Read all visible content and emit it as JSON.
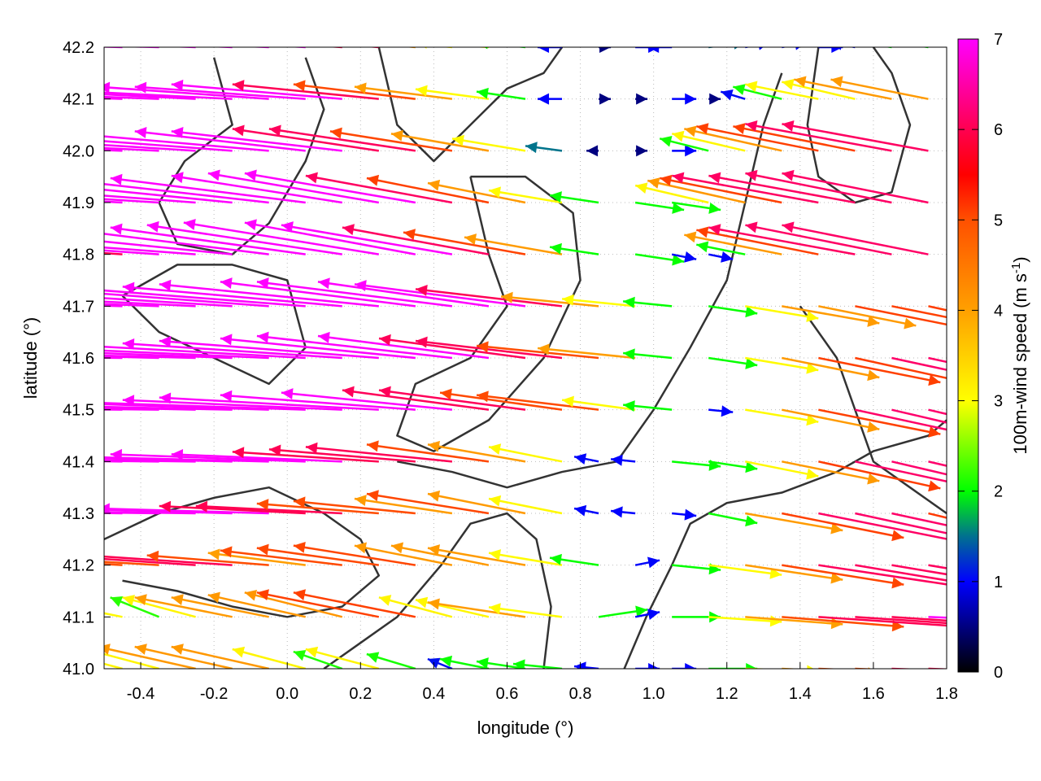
{
  "chart_data": {
    "type": "vector-field",
    "xlabel": "longitude (°)",
    "ylabel": "latitude (°)",
    "xlim": [
      -0.5,
      1.8
    ],
    "ylim": [
      41.0,
      42.2
    ],
    "xticks": [
      "-0.4",
      "-0.2",
      "0.0",
      "0.2",
      "0.4",
      "0.6",
      "0.8",
      "1.0",
      "1.2",
      "1.4",
      "1.6",
      "1.8"
    ],
    "yticks": [
      "41.0",
      "41.1",
      "41.2",
      "41.3",
      "41.4",
      "41.5",
      "41.6",
      "41.7",
      "41.8",
      "41.9",
      "42.0",
      "42.1",
      "42.2"
    ],
    "grid": true,
    "colorbar": {
      "label": "100m-wind speed (m s",
      "label_sup": "-1",
      "label_end": ")",
      "range": [
        0,
        7
      ],
      "ticks": [
        "0",
        "1",
        "2",
        "3",
        "4",
        "5",
        "6",
        "7"
      ],
      "palette": [
        {
          "v": 0,
          "c": "#000000"
        },
        {
          "v": 1,
          "c": "#0000ff"
        },
        {
          "v": 1.5,
          "c": "#007090"
        },
        {
          "v": 2,
          "c": "#00ff00"
        },
        {
          "v": 3,
          "c": "#ffff00"
        },
        {
          "v": 4,
          "c": "#ffa000"
        },
        {
          "v": 5,
          "c": "#ff5000"
        },
        {
          "v": 5.5,
          "c": "#ff0000"
        },
        {
          "v": 6,
          "c": "#ff0050"
        },
        {
          "v": 7,
          "c": "#ff00ff"
        }
      ]
    },
    "contour_color": "#333333",
    "grid_lon": [
      -0.45,
      -0.35,
      -0.25,
      -0.15,
      -0.05,
      0.05,
      0.15,
      0.25,
      0.35,
      0.45,
      0.55,
      0.65,
      0.75,
      0.85,
      0.95,
      1.05,
      1.15,
      1.25,
      1.35,
      1.45,
      1.55,
      1.65,
      1.75
    ],
    "grid_lat": [
      42.2,
      42.1,
      42.0,
      41.9,
      41.8,
      41.7,
      41.6,
      41.5,
      41.4,
      41.3,
      41.2,
      41.1,
      41.0
    ],
    "u": [
      [
        -8,
        -8,
        -8,
        -7,
        -7,
        -7,
        -6,
        -6,
        -4,
        -3,
        -3,
        -2,
        -1,
        0.5,
        1,
        -1,
        1.5,
        1,
        1,
        1,
        -1,
        -2,
        -2
      ],
      [
        -8,
        -8,
        -8,
        -8,
        -7,
        -7,
        -7,
        -6,
        -5,
        -4,
        -3,
        -2,
        -1,
        0.5,
        0.5,
        1,
        0.5,
        -1,
        -2,
        -3,
        -3,
        -4,
        -4
      ],
      [
        -8,
        -8,
        -8,
        -8,
        -8,
        -7,
        -7,
        -6,
        -6,
        -5,
        -4,
        -3,
        -1.5,
        -0.5,
        0.5,
        1,
        -2,
        -3,
        -4,
        -5,
        -5,
        -6,
        -6
      ],
      [
        -7,
        -8,
        -8,
        -8,
        -8,
        -8,
        -7,
        -7,
        -7,
        -6,
        -5,
        -4,
        -3,
        -2,
        2,
        2,
        -3,
        -4,
        -5,
        -6,
        -6,
        -6,
        -6
      ],
      [
        -6,
        -7,
        -8,
        -8,
        -8,
        -8,
        -8,
        -8,
        -7,
        -7,
        -6,
        -5,
        -4,
        -2,
        2,
        1,
        1,
        -2,
        -4,
        -5,
        -6,
        -6,
        -6
      ],
      [
        -8,
        -8,
        -8,
        -8,
        -8,
        -9,
        -9,
        -9,
        -8,
        -8,
        -7,
        -7,
        -6,
        -4,
        -3,
        -2,
        2,
        3,
        4,
        4,
        5,
        5,
        5
      ],
      [
        -8,
        -8,
        -8,
        -8,
        -9,
        -9,
        -9,
        -9,
        -8,
        -8,
        -7,
        -6,
        -6,
        -5,
        -4,
        -2,
        2,
        3,
        4,
        5,
        5,
        6,
        6
      ],
      [
        -8,
        -8,
        -9,
        -9,
        -9,
        -9,
        -9,
        -9,
        -8,
        -7,
        -6,
        -6,
        -5,
        -5,
        -3,
        -2,
        1,
        3,
        4,
        5,
        6,
        6,
        6
      ],
      [
        -8,
        -8,
        -8,
        -8,
        -8,
        -8,
        -7,
        -6,
        -6,
        -6,
        -5,
        -4,
        -3,
        -1,
        -1,
        2,
        2,
        3,
        4,
        5,
        6,
        6,
        6
      ],
      [
        -7,
        -7,
        -7,
        -7,
        -7,
        -6,
        -6,
        -5,
        -5,
        -4,
        -5,
        -4,
        -3,
        -1,
        -1,
        1,
        2,
        4,
        5,
        6,
        6,
        6,
        5
      ],
      [
        -5,
        -5,
        -6,
        -6,
        -5,
        -4,
        -5,
        -5,
        -5,
        -4,
        -4,
        -4,
        -3,
        -2,
        1,
        2,
        3,
        4,
        5,
        6,
        6,
        6,
        6
      ],
      [
        -3,
        -2,
        -3,
        -4,
        -4,
        -4,
        -4,
        -5,
        -5,
        -3,
        -3,
        -4,
        -3,
        2,
        1,
        2,
        3,
        4,
        5,
        6,
        6,
        6,
        7
      ],
      [
        -3,
        -3,
        -4,
        -4,
        -4,
        -3,
        -2,
        -3,
        -2,
        -1,
        -2,
        -2,
        -2,
        -1,
        1,
        1,
        2,
        3,
        4,
        5,
        5,
        6,
        6
      ]
    ],
    "v": [
      [
        0.2,
        0.2,
        0.3,
        0.3,
        0.3,
        0.4,
        0.4,
        0.5,
        0.4,
        0.3,
        0.2,
        0.2,
        0,
        0,
        0,
        0,
        0.2,
        0.2,
        0.2,
        0,
        0.2,
        0.3,
        0.3
      ],
      [
        0.3,
        0.3,
        0.4,
        0.4,
        0.5,
        0.5,
        0.6,
        0.6,
        0.6,
        0.5,
        0.4,
        0.3,
        0,
        0,
        0,
        0,
        0,
        0.3,
        0.5,
        0.6,
        0.7,
        0.8,
        0.8
      ],
      [
        0.3,
        0.4,
        0.5,
        0.6,
        0.7,
        0.8,
        0.8,
        0.9,
        0.9,
        0.8,
        0.7,
        0.5,
        0.2,
        0,
        0,
        0,
        0.5,
        0.7,
        0.9,
        1.0,
        1.0,
        1.1,
        1.1
      ],
      [
        0.4,
        0.5,
        0.6,
        0.8,
        0.9,
        1.0,
        1.1,
        1.2,
        1.2,
        1.1,
        1.0,
        0.8,
        0.5,
        0.3,
        -0.3,
        -0.3,
        0.7,
        0.9,
        1.0,
        1.1,
        1.1,
        1.2,
        1.2
      ],
      [
        0.4,
        0.5,
        0.6,
        0.8,
        1.0,
        1.1,
        1.2,
        1.3,
        1.3,
        1.2,
        1.1,
        0.9,
        0.7,
        0.3,
        -0.3,
        -0.2,
        -0.2,
        0.4,
        0.8,
        1.0,
        1.1,
        1.2,
        1.2
      ],
      [
        0.2,
        0.3,
        0.4,
        0.5,
        0.6,
        0.7,
        0.8,
        0.9,
        1.0,
        1.0,
        1.0,
        0.9,
        0.7,
        0.4,
        0.3,
        0.2,
        -0.3,
        -0.5,
        -0.7,
        -0.8,
        -1.0,
        -1.0,
        -1.1
      ],
      [
        0.1,
        0.2,
        0.2,
        0.3,
        0.4,
        0.5,
        0.6,
        0.7,
        0.8,
        0.9,
        0.9,
        0.8,
        0.7,
        0.5,
        0.4,
        0.2,
        -0.3,
        -0.5,
        -0.8,
        -1.0,
        -1.1,
        -1.3,
        -1.3
      ],
      [
        0.1,
        0.1,
        0.2,
        0.2,
        0.3,
        0.3,
        0.4,
        0.5,
        0.6,
        0.7,
        0.8,
        0.8,
        0.7,
        0.6,
        0.4,
        0.2,
        -0.1,
        -0.5,
        -0.8,
        -1.0,
        -1.3,
        -1.4,
        -1.4
      ],
      [
        0.1,
        0.1,
        0.1,
        0.2,
        0.2,
        0.3,
        0.3,
        0.4,
        0.5,
        0.6,
        0.7,
        0.7,
        0.6,
        0.2,
        0.1,
        -0.2,
        -0.3,
        -0.6,
        -0.8,
        -1.1,
        -1.3,
        -1.4,
        -1.4
      ],
      [
        0.1,
        0.1,
        0.1,
        0.2,
        0.2,
        0.3,
        0.3,
        0.4,
        0.5,
        0.6,
        0.8,
        0.8,
        0.6,
        0.2,
        0.1,
        -0.1,
        -0.4,
        -0.7,
        -1.0,
        -1.2,
        -1.3,
        -1.3,
        -1.2
      ],
      [
        0.3,
        0.3,
        0.4,
        0.4,
        0.4,
        0.5,
        0.6,
        0.7,
        0.8,
        0.8,
        0.8,
        0.7,
        0.5,
        0.3,
        0.2,
        -0.2,
        -0.4,
        -0.6,
        -0.8,
        -0.9,
        -1.0,
        -1.0,
        -1.0
      ],
      [
        0.6,
        0.8,
        0.8,
        0.8,
        0.8,
        0.9,
        1.0,
        1.0,
        1.0,
        0.8,
        0.7,
        0.6,
        0.4,
        0.3,
        0.2,
        0,
        -0.2,
        -0.3,
        -0.4,
        -0.4,
        -0.4,
        -0.4,
        -0.3
      ],
      [
        0.8,
        0.8,
        0.9,
        0.9,
        0.9,
        0.8,
        0.7,
        0.8,
        0.6,
        0.4,
        0.4,
        0.3,
        0.2,
        0.1,
        0,
        0,
        0,
        -0.1,
        -0.2,
        -0.2,
        -0.2,
        -0.2,
        -0.2
      ]
    ],
    "contours": [
      [
        [
          -0.2,
          42.18
        ],
        [
          -0.15,
          42.05
        ],
        [
          -0.28,
          41.98
        ],
        [
          -0.35,
          41.9
        ],
        [
          -0.3,
          41.82
        ],
        [
          -0.15,
          41.8
        ],
        [
          -0.05,
          41.86
        ],
        [
          0.05,
          41.98
        ],
        [
          0.1,
          42.08
        ],
        [
          0.05,
          42.18
        ]
      ],
      [
        [
          0.25,
          42.2
        ],
        [
          0.3,
          42.05
        ],
        [
          0.4,
          41.98
        ],
        [
          0.5,
          42.05
        ],
        [
          0.6,
          42.12
        ],
        [
          0.7,
          42.15
        ],
        [
          0.75,
          42.2
        ]
      ],
      [
        [
          0.5,
          41.95
        ],
        [
          0.55,
          41.8
        ],
        [
          0.6,
          41.7
        ],
        [
          0.5,
          41.6
        ],
        [
          0.35,
          41.55
        ],
        [
          0.3,
          41.45
        ],
        [
          0.4,
          41.42
        ],
        [
          0.55,
          41.48
        ],
        [
          0.7,
          41.6
        ],
        [
          0.8,
          41.75
        ],
        [
          0.78,
          41.88
        ],
        [
          0.65,
          41.95
        ],
        [
          0.5,
          41.95
        ]
      ],
      [
        [
          -0.45,
          41.72
        ],
        [
          -0.35,
          41.65
        ],
        [
          -0.2,
          41.6
        ],
        [
          -0.05,
          41.55
        ],
        [
          0.05,
          41.62
        ],
        [
          0.0,
          41.75
        ],
        [
          -0.15,
          41.78
        ],
        [
          -0.3,
          41.78
        ],
        [
          -0.45,
          41.72
        ]
      ],
      [
        [
          0.3,
          41.4
        ],
        [
          0.45,
          41.38
        ],
        [
          0.6,
          41.35
        ],
        [
          0.75,
          41.38
        ],
        [
          0.9,
          41.4
        ],
        [
          1.0,
          41.5
        ],
        [
          1.1,
          41.62
        ],
        [
          1.2,
          41.75
        ],
        [
          1.25,
          41.9
        ],
        [
          1.3,
          42.05
        ],
        [
          1.35,
          42.15
        ]
      ],
      [
        [
          0.7,
          41.0
        ],
        [
          0.72,
          41.12
        ],
        [
          0.68,
          41.25
        ],
        [
          0.6,
          41.3
        ],
        [
          0.5,
          41.28
        ],
        [
          0.42,
          41.2
        ],
        [
          0.3,
          41.1
        ],
        [
          0.2,
          41.05
        ],
        [
          0.1,
          41.0
        ]
      ],
      [
        [
          0.92,
          41.0
        ],
        [
          0.98,
          41.1
        ],
        [
          1.05,
          41.2
        ],
        [
          1.1,
          41.28
        ],
        [
          1.2,
          41.32
        ],
        [
          1.35,
          41.34
        ],
        [
          1.5,
          41.38
        ],
        [
          1.6,
          41.42
        ],
        [
          1.75,
          41.45
        ],
        [
          1.8,
          41.48
        ]
      ],
      [
        [
          1.45,
          42.2
        ],
        [
          1.42,
          42.05
        ],
        [
          1.45,
          41.95
        ],
        [
          1.55,
          41.9
        ],
        [
          1.65,
          41.92
        ],
        [
          1.7,
          42.05
        ],
        [
          1.65,
          42.15
        ],
        [
          1.6,
          42.2
        ]
      ],
      [
        [
          1.4,
          41.7
        ],
        [
          1.5,
          41.6
        ],
        [
          1.55,
          41.5
        ],
        [
          1.6,
          41.4
        ],
        [
          1.7,
          41.35
        ],
        [
          1.8,
          41.3
        ]
      ],
      [
        [
          -0.5,
          41.25
        ],
        [
          -0.35,
          41.3
        ],
        [
          -0.2,
          41.33
        ],
        [
          -0.05,
          41.35
        ],
        [
          0.1,
          41.3
        ],
        [
          0.2,
          41.25
        ],
        [
          0.25,
          41.18
        ],
        [
          0.15,
          41.12
        ],
        [
          0.0,
          41.1
        ],
        [
          -0.15,
          41.12
        ],
        [
          -0.3,
          41.15
        ],
        [
          -0.45,
          41.17
        ]
      ]
    ]
  }
}
